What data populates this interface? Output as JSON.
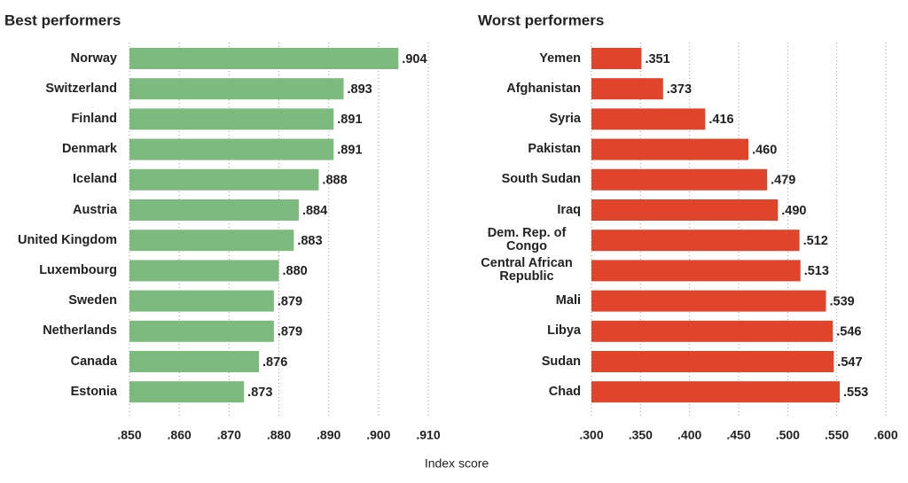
{
  "chart_data": [
    {
      "type": "bar",
      "orientation": "horizontal",
      "title": "Best performers",
      "categories": [
        "Norway",
        "Switzerland",
        "Finland",
        "Denmark",
        "Iceland",
        "Austria",
        "United Kingdom",
        "Luxembourg",
        "Sweden",
        "Netherlands",
        "Canada",
        "Estonia"
      ],
      "values": [
        0.904,
        0.893,
        0.891,
        0.891,
        0.888,
        0.884,
        0.883,
        0.88,
        0.879,
        0.879,
        0.876,
        0.873
      ],
      "value_labels": [
        ".904",
        ".893",
        ".891",
        ".891",
        ".888",
        ".884",
        ".883",
        ".880",
        ".879",
        ".879",
        ".876",
        ".873"
      ],
      "color": "#7dba7e",
      "xlim": [
        0.85,
        0.91
      ],
      "xticks": [
        {
          "value": 0.85,
          "label": ".850"
        },
        {
          "value": 0.86,
          "label": ".860"
        },
        {
          "value": 0.87,
          "label": ".870"
        },
        {
          "value": 0.88,
          "label": ".880"
        },
        {
          "value": 0.89,
          "label": ".890"
        },
        {
          "value": 0.9,
          "label": ".900"
        },
        {
          "value": 0.91,
          "label": ".910"
        }
      ],
      "grid": true
    },
    {
      "type": "bar",
      "orientation": "horizontal",
      "title": "Worst performers",
      "categories": [
        "Yemen",
        "Afghanistan",
        "Syria",
        "Pakistan",
        "South Sudan",
        "Iraq",
        "Dem. Rep. of Congo",
        "Central African Republic",
        "Mali",
        "Libya",
        "Sudan",
        "Chad"
      ],
      "values": [
        0.351,
        0.373,
        0.416,
        0.46,
        0.479,
        0.49,
        0.512,
        0.513,
        0.539,
        0.546,
        0.547,
        0.553
      ],
      "value_labels": [
        ".351",
        ".373",
        ".416",
        ".460",
        ".479",
        ".490",
        ".512",
        ".513",
        ".539",
        ".546",
        ".547",
        ".553"
      ],
      "color": "#e0452b",
      "xlim": [
        0.3,
        0.6
      ],
      "xticks": [
        {
          "value": 0.3,
          "label": ".300"
        },
        {
          "value": 0.35,
          "label": ".350"
        },
        {
          "value": 0.4,
          "label": ".400"
        },
        {
          "value": 0.45,
          "label": ".450"
        },
        {
          "value": 0.5,
          "label": ".500"
        },
        {
          "value": 0.55,
          "label": ".550"
        },
        {
          "value": 0.6,
          "label": ".600"
        }
      ],
      "grid": true
    }
  ],
  "axis_label": "Index score"
}
